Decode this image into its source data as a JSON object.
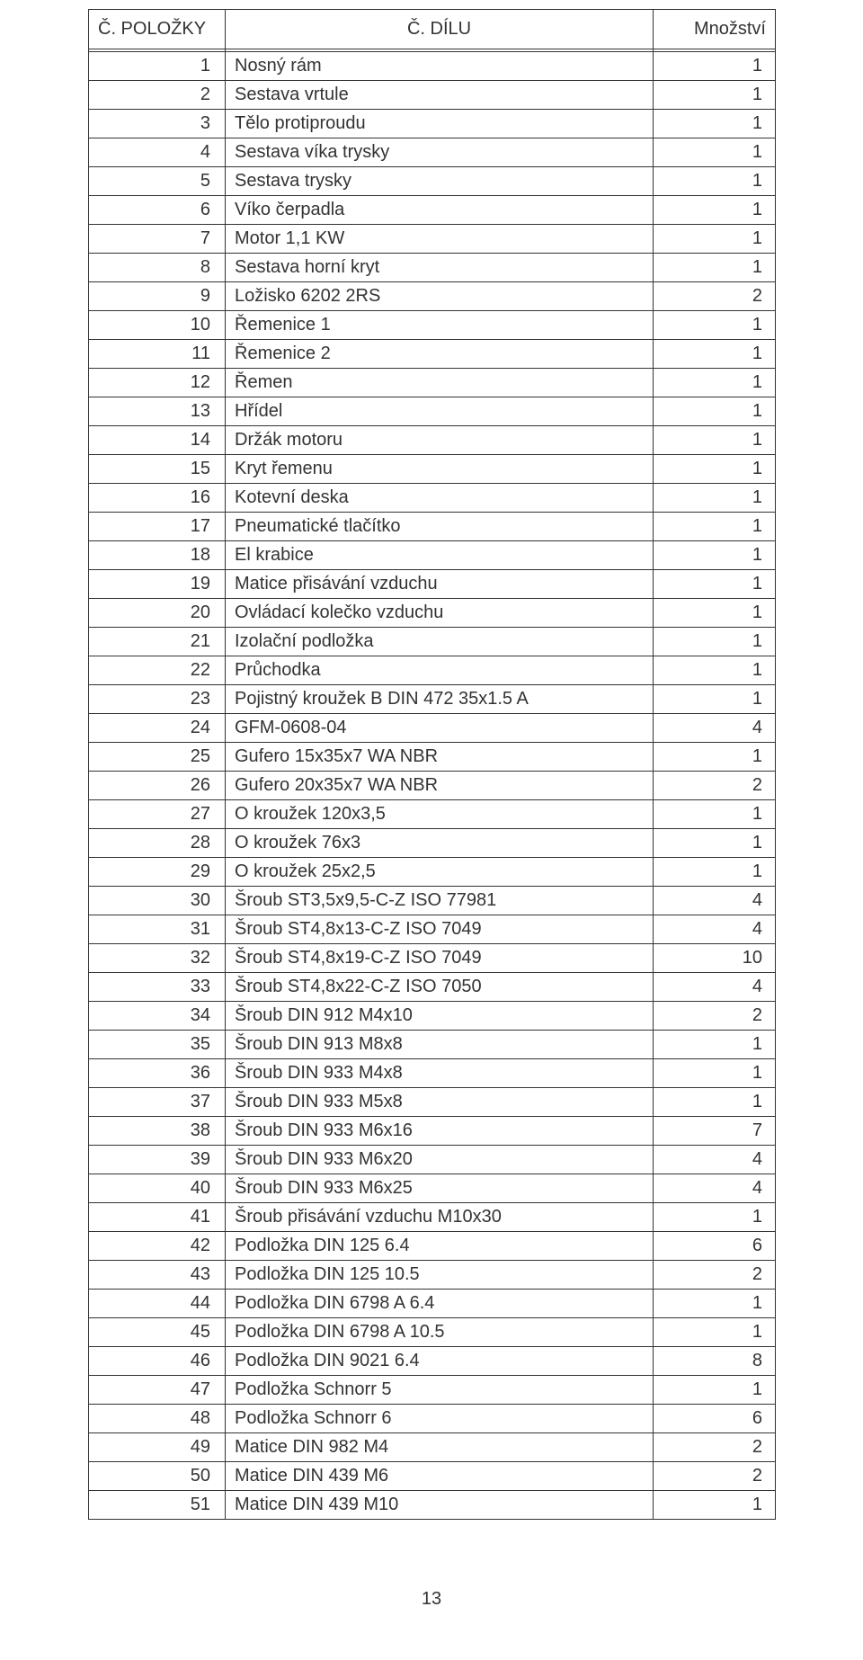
{
  "text_color": "#333333",
  "background_color": "#ffffff",
  "border_color": "#333333",
  "font_family": "Century Gothic",
  "header_fontsize_pt": 15,
  "body_fontsize_pt": 15,
  "page_number": "13",
  "table": {
    "columns": [
      {
        "key": "item_no",
        "header": "Č. POLOŽKY",
        "align": "right",
        "width_pct": 20
      },
      {
        "key": "part_no",
        "header": "Č. DÍLU",
        "align": "left",
        "width_pct": 62
      },
      {
        "key": "qty",
        "header": "Množství",
        "align": "right",
        "width_pct": 18
      }
    ],
    "rows": [
      {
        "item_no": "1",
        "part_no": "Nosný rám",
        "qty": "1"
      },
      {
        "item_no": "2",
        "part_no": "Sestava vrtule",
        "qty": "1"
      },
      {
        "item_no": "3",
        "part_no": "Tělo protiproudu",
        "qty": "1"
      },
      {
        "item_no": "4",
        "part_no": "Sestava víka trysky",
        "qty": "1"
      },
      {
        "item_no": "5",
        "part_no": "Sestava trysky",
        "qty": "1"
      },
      {
        "item_no": "6",
        "part_no": "Víko čerpadla",
        "qty": "1"
      },
      {
        "item_no": "7",
        "part_no": "Motor 1,1 KW",
        "qty": "1"
      },
      {
        "item_no": "8",
        "part_no": "Sestava horní kryt",
        "qty": "1"
      },
      {
        "item_no": "9",
        "part_no": "Ložisko 6202 2RS",
        "qty": "2"
      },
      {
        "item_no": "10",
        "part_no": "Řemenice 1",
        "qty": "1"
      },
      {
        "item_no": "11",
        "part_no": "Řemenice 2",
        "qty": "1"
      },
      {
        "item_no": "12",
        "part_no": "Řemen",
        "qty": "1"
      },
      {
        "item_no": "13",
        "part_no": "Hřídel",
        "qty": "1"
      },
      {
        "item_no": "14",
        "part_no": "Držák motoru",
        "qty": "1"
      },
      {
        "item_no": "15",
        "part_no": "Kryt řemenu",
        "qty": "1"
      },
      {
        "item_no": "16",
        "part_no": "Kotevní deska",
        "qty": "1"
      },
      {
        "item_no": "17",
        "part_no": "Pneumatické tlačítko",
        "qty": "1"
      },
      {
        "item_no": "18",
        "part_no": "El krabice",
        "qty": "1"
      },
      {
        "item_no": "19",
        "part_no": "Matice přisávání vzduchu",
        "qty": "1"
      },
      {
        "item_no": "20",
        "part_no": "Ovládací kolečko vzduchu",
        "qty": "1"
      },
      {
        "item_no": "21",
        "part_no": "Izolační podložka",
        "qty": "1"
      },
      {
        "item_no": "22",
        "part_no": "Průchodka",
        "qty": "1"
      },
      {
        "item_no": "23",
        "part_no": "Pojistný kroužek B DIN 472 35x1.5 A",
        "qty": "1"
      },
      {
        "item_no": "24",
        "part_no": "GFM-0608-04",
        "qty": "4"
      },
      {
        "item_no": "25",
        "part_no": "Gufero 15x35x7 WA NBR",
        "qty": "1"
      },
      {
        "item_no": "26",
        "part_no": "Gufero 20x35x7 WA NBR",
        "qty": "2"
      },
      {
        "item_no": "27",
        "part_no": "O kroužek 120x3,5",
        "qty": "1"
      },
      {
        "item_no": "28",
        "part_no": "O kroužek 76x3",
        "qty": "1"
      },
      {
        "item_no": "29",
        "part_no": "O kroužek 25x2,5",
        "qty": "1"
      },
      {
        "item_no": "30",
        "part_no": "Šroub ST3,5x9,5-C-Z ISO 77981",
        "qty": "4"
      },
      {
        "item_no": "31",
        "part_no": "Šroub ST4,8x13-C-Z ISO 7049",
        "qty": "4"
      },
      {
        "item_no": "32",
        "part_no": "Šroub ST4,8x19-C-Z ISO 7049",
        "qty": "10"
      },
      {
        "item_no": "33",
        "part_no": "Šroub ST4,8x22-C-Z ISO 7050",
        "qty": "4"
      },
      {
        "item_no": "34",
        "part_no": "Šroub DIN 912 M4x10",
        "qty": "2"
      },
      {
        "item_no": "35",
        "part_no": "Šroub DIN 913 M8x8",
        "qty": "1"
      },
      {
        "item_no": "36",
        "part_no": "Šroub DIN 933 M4x8",
        "qty": "1"
      },
      {
        "item_no": "37",
        "part_no": "Šroub DIN 933 M5x8",
        "qty": "1"
      },
      {
        "item_no": "38",
        "part_no": "Šroub DIN 933 M6x16",
        "qty": "7"
      },
      {
        "item_no": "39",
        "part_no": "Šroub DIN 933 M6x20",
        "qty": "4"
      },
      {
        "item_no": "40",
        "part_no": "Šroub DIN 933 M6x25",
        "qty": "4"
      },
      {
        "item_no": "41",
        "part_no": "Šroub přisávání vzduchu M10x30",
        "qty": "1"
      },
      {
        "item_no": "42",
        "part_no": "Podložka DIN 125 6.4",
        "qty": "6"
      },
      {
        "item_no": "43",
        "part_no": "Podložka DIN 125 10.5",
        "qty": "2"
      },
      {
        "item_no": "44",
        "part_no": "Podložka DIN 6798 A 6.4",
        "qty": "1"
      },
      {
        "item_no": "45",
        "part_no": "Podložka DIN 6798 A 10.5",
        "qty": "1"
      },
      {
        "item_no": "46",
        "part_no": "Podložka DIN 9021 6.4",
        "qty": "8"
      },
      {
        "item_no": "47",
        "part_no": "Podložka Schnorr 5",
        "qty": "1"
      },
      {
        "item_no": "48",
        "part_no": "Podložka Schnorr 6",
        "qty": "6"
      },
      {
        "item_no": "49",
        "part_no": "Matice DIN 982 M4",
        "qty": "2"
      },
      {
        "item_no": "50",
        "part_no": "Matice DIN 439 M6",
        "qty": "2"
      },
      {
        "item_no": "51",
        "part_no": "Matice DIN 439 M10",
        "qty": "1"
      }
    ]
  }
}
